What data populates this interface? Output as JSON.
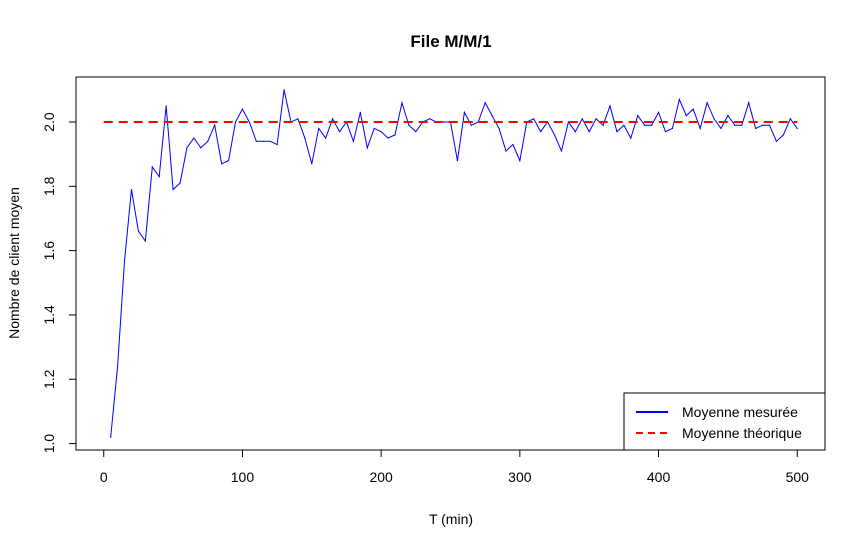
{
  "chart_data": {
    "type": "line",
    "title": "File M/M/1",
    "xlabel": "T (min)",
    "ylabel": "Nombre de client moyen",
    "xlim": [
      -20,
      520
    ],
    "ylim": [
      0.98,
      2.14
    ],
    "x_ticks": [
      0,
      100,
      200,
      300,
      400,
      500
    ],
    "y_ticks": [
      1.0,
      1.2,
      1.4,
      1.6,
      1.8,
      2.0
    ],
    "x_tick_labels": [
      "0",
      "100",
      "200",
      "300",
      "400",
      "500"
    ],
    "y_tick_labels": [
      "1.0",
      "1.2",
      "1.4",
      "1.6",
      "1.8",
      "2.0"
    ],
    "grid": false,
    "legend_position": "bottom-right",
    "legend": [
      {
        "label": "Moyenne mesurée",
        "color": "#0000ff",
        "style": "solid"
      },
      {
        "label": "Moyenne théorique",
        "color": "#ff0000",
        "style": "dashed"
      }
    ],
    "series": [
      {
        "name": "Moyenne mesurée",
        "color": "#0000ff",
        "x": [
          5,
          10,
          15,
          20,
          25,
          30,
          35,
          40,
          45,
          50,
          55,
          60,
          65,
          70,
          75,
          80,
          85,
          90,
          95,
          100,
          105,
          110,
          115,
          120,
          125,
          130,
          135,
          140,
          145,
          150,
          155,
          160,
          165,
          170,
          175,
          180,
          185,
          190,
          195,
          200,
          205,
          210,
          215,
          220,
          225,
          230,
          235,
          240,
          245,
          250,
          255,
          260,
          265,
          270,
          275,
          280,
          285,
          290,
          295,
          300,
          305,
          310,
          315,
          320,
          325,
          330,
          335,
          340,
          345,
          350,
          355,
          360,
          365,
          370,
          375,
          380,
          385,
          390,
          395,
          400,
          405,
          410,
          415,
          420,
          425,
          430,
          435,
          440,
          445,
          450,
          455,
          460,
          465,
          470,
          475,
          480,
          485,
          490,
          495,
          500
        ],
        "y": [
          1.02,
          1.24,
          1.57,
          1.79,
          1.66,
          1.63,
          1.86,
          1.83,
          2.05,
          1.79,
          1.81,
          1.92,
          1.95,
          1.92,
          1.94,
          1.99,
          1.87,
          1.88,
          2.0,
          2.04,
          2.0,
          1.94,
          1.94,
          1.94,
          1.93,
          2.1,
          2.0,
          2.01,
          1.95,
          1.87,
          1.98,
          1.95,
          2.01,
          1.97,
          2.0,
          1.94,
          2.03,
          1.92,
          1.98,
          1.97,
          1.95,
          1.96,
          2.06,
          1.99,
          1.97,
          2.0,
          2.01,
          2.0,
          2.0,
          2.0,
          1.88,
          2.03,
          1.99,
          2.0,
          2.06,
          2.02,
          1.98,
          1.91,
          1.93,
          1.88,
          2.0,
          2.01,
          1.97,
          2.0,
          1.96,
          1.91,
          2.0,
          1.97,
          2.01,
          1.97,
          2.01,
          1.99,
          2.05,
          1.97,
          1.99,
          1.95,
          2.02,
          1.99,
          1.99,
          2.03,
          1.97,
          1.98,
          2.07,
          2.02,
          2.04,
          1.98,
          2.06,
          2.01,
          1.98,
          2.02,
          1.99,
          1.99,
          2.06,
          1.98,
          1.99,
          1.99,
          1.94,
          1.96,
          2.01,
          1.98
        ]
      },
      {
        "name": "Moyenne théorique",
        "color": "#ff0000",
        "x": [
          0,
          500
        ],
        "y": [
          2.0,
          2.0
        ]
      }
    ]
  }
}
